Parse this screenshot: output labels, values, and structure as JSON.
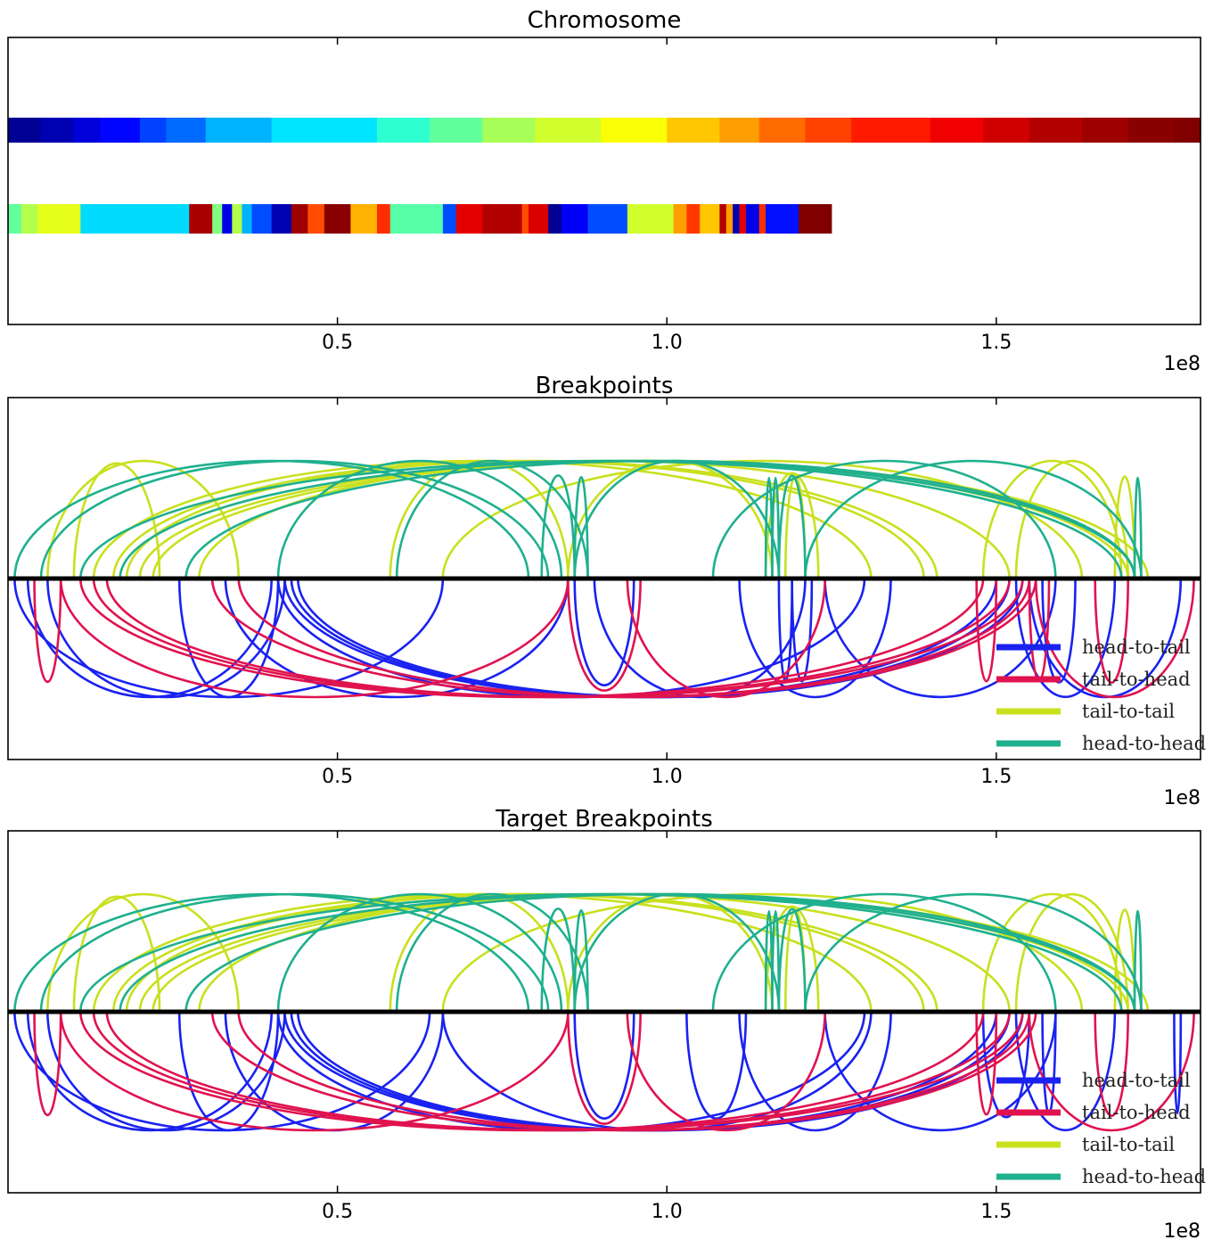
{
  "colors": {
    "head_to_tail": "#1a22f0",
    "tail_to_head": "#e0134f",
    "tail_to_tail": "#c8e01e",
    "head_to_head": "#1fb08e",
    "axis": "#000000"
  },
  "chart_data": [
    {
      "type": "heatmap",
      "title": "Chromosome",
      "xlim": [
        0,
        181000000
      ],
      "xticks": [
        50000000,
        100000000,
        150000000
      ],
      "xtick_labels": [
        "0.5",
        "1.0",
        "1.5"
      ],
      "offset_label": "1e8",
      "colormap": "jet",
      "tracks": [
        {
          "name": "reference",
          "segments": [
            {
              "start": 0,
              "end": 5000000,
              "v": 0.02
            },
            {
              "start": 5000000,
              "end": 10000000,
              "v": 0.05
            },
            {
              "start": 10000000,
              "end": 14000000,
              "v": 0.09
            },
            {
              "start": 14000000,
              "end": 20000000,
              "v": 0.13
            },
            {
              "start": 20000000,
              "end": 24000000,
              "v": 0.19
            },
            {
              "start": 24000000,
              "end": 30000000,
              "v": 0.23
            },
            {
              "start": 30000000,
              "end": 40000000,
              "v": 0.3
            },
            {
              "start": 40000000,
              "end": 56000000,
              "v": 0.35
            },
            {
              "start": 56000000,
              "end": 64000000,
              "v": 0.42
            },
            {
              "start": 64000000,
              "end": 72000000,
              "v": 0.47
            },
            {
              "start": 72000000,
              "end": 80000000,
              "v": 0.54
            },
            {
              "start": 80000000,
              "end": 90000000,
              "v": 0.58
            },
            {
              "start": 90000000,
              "end": 100000000,
              "v": 0.62
            },
            {
              "start": 100000000,
              "end": 108000000,
              "v": 0.68
            },
            {
              "start": 108000000,
              "end": 114000000,
              "v": 0.72
            },
            {
              "start": 114000000,
              "end": 121000000,
              "v": 0.77
            },
            {
              "start": 121000000,
              "end": 128000000,
              "v": 0.81
            },
            {
              "start": 128000000,
              "end": 140000000,
              "v": 0.85
            },
            {
              "start": 140000000,
              "end": 148000000,
              "v": 0.89
            },
            {
              "start": 148000000,
              "end": 155000000,
              "v": 0.92
            },
            {
              "start": 155000000,
              "end": 163000000,
              "v": 0.95
            },
            {
              "start": 163000000,
              "end": 170000000,
              "v": 0.97
            },
            {
              "start": 170000000,
              "end": 177000000,
              "v": 0.99
            },
            {
              "start": 177000000,
              "end": 181000000,
              "v": 1.0
            }
          ]
        },
        {
          "name": "target",
          "segments": [
            {
              "start": 0,
              "end": 2000000,
              "v": 0.47
            },
            {
              "start": 2000000,
              "end": 4500000,
              "v": 0.55
            },
            {
              "start": 4500000,
              "end": 11000000,
              "v": 0.6
            },
            {
              "start": 11000000,
              "end": 27500000,
              "v": 0.34
            },
            {
              "start": 27500000,
              "end": 31000000,
              "v": 0.96
            },
            {
              "start": 31000000,
              "end": 32500000,
              "v": 0.5
            },
            {
              "start": 32500000,
              "end": 34000000,
              "v": 0.1
            },
            {
              "start": 34000000,
              "end": 35500000,
              "v": 0.55
            },
            {
              "start": 35500000,
              "end": 37000000,
              "v": 0.3
            },
            {
              "start": 37000000,
              "end": 40000000,
              "v": 0.2
            },
            {
              "start": 40000000,
              "end": 43000000,
              "v": 0.05
            },
            {
              "start": 43000000,
              "end": 45500000,
              "v": 0.97
            },
            {
              "start": 45500000,
              "end": 48000000,
              "v": 0.8
            },
            {
              "start": 48000000,
              "end": 52000000,
              "v": 0.99
            },
            {
              "start": 52000000,
              "end": 56000000,
              "v": 0.7
            },
            {
              "start": 56000000,
              "end": 58000000,
              "v": 0.83
            },
            {
              "start": 58000000,
              "end": 66000000,
              "v": 0.46
            },
            {
              "start": 66000000,
              "end": 68000000,
              "v": 0.2
            },
            {
              "start": 68000000,
              "end": 72000000,
              "v": 0.9
            },
            {
              "start": 72000000,
              "end": 78000000,
              "v": 0.95
            },
            {
              "start": 78000000,
              "end": 79000000,
              "v": 0.8
            },
            {
              "start": 79000000,
              "end": 82000000,
              "v": 0.91
            },
            {
              "start": 82000000,
              "end": 84000000,
              "v": 0.02
            },
            {
              "start": 84000000,
              "end": 88000000,
              "v": 0.12
            },
            {
              "start": 88000000,
              "end": 94000000,
              "v": 0.2
            },
            {
              "start": 94000000,
              "end": 101000000,
              "v": 0.58
            },
            {
              "start": 101000000,
              "end": 103000000,
              "v": 0.72
            },
            {
              "start": 103000000,
              "end": 105000000,
              "v": 0.82
            },
            {
              "start": 105000000,
              "end": 108000000,
              "v": 0.68
            },
            {
              "start": 108000000,
              "end": 109000000,
              "v": 0.95
            },
            {
              "start": 109000000,
              "end": 110000000,
              "v": 0.72
            },
            {
              "start": 110000000,
              "end": 111000000,
              "v": 0.05
            },
            {
              "start": 111000000,
              "end": 112000000,
              "v": 0.9
            },
            {
              "start": 112000000,
              "end": 114000000,
              "v": 0.1
            },
            {
              "start": 114000000,
              "end": 115000000,
              "v": 0.83
            },
            {
              "start": 115000000,
              "end": 120000000,
              "v": 0.14
            },
            {
              "start": 120000000,
              "end": 125000000,
              "v": 1.0
            }
          ]
        }
      ]
    },
    {
      "type": "arc",
      "title": "Breakpoints",
      "xlim": [
        0,
        181000000
      ],
      "xticks": [
        50000000,
        100000000,
        150000000
      ],
      "xtick_labels": [
        "0.5",
        "1.0",
        "1.5"
      ],
      "offset_label": "1e8",
      "legend": [
        "head-to-tail",
        "tail-to-head",
        "tail-to-tail",
        "head-to-head"
      ],
      "legend_position": "bottom-right",
      "series": [
        {
          "name": "head-to-tail",
          "arcs": [
            [
              1000000,
              66000000
            ],
            [
              3000000,
              40000000
            ],
            [
              6000000,
              42000000
            ],
            [
              26000000,
              41000000
            ],
            [
              33000000,
              85000000
            ],
            [
              41000000,
              130000000
            ],
            [
              42000000,
              150000000
            ],
            [
              43000000,
              152000000
            ],
            [
              44000000,
              154000000
            ],
            [
              86000000,
              95000000
            ],
            [
              89000000,
              121000000
            ],
            [
              111000000,
              134000000
            ],
            [
              117000000,
              119000000
            ],
            [
              119000000,
              122000000
            ],
            [
              124000000,
              159000000
            ],
            [
              153000000,
              168000000
            ],
            [
              155000000,
              178000000
            ],
            [
              157000000,
              162000000
            ]
          ]
        },
        {
          "name": "tail-to-head",
          "arcs": [
            [
              4000000,
              8000000
            ],
            [
              8000000,
              85000000
            ],
            [
              11000000,
              148000000
            ],
            [
              13000000,
              152000000
            ],
            [
              15000000,
              154000000
            ],
            [
              31000000,
              155000000
            ],
            [
              35000000,
              156000000
            ],
            [
              85000000,
              96000000
            ],
            [
              94000000,
              124000000
            ],
            [
              147000000,
              150000000
            ],
            [
              155000000,
              158000000
            ],
            [
              156000000,
              180000000
            ],
            [
              165000000,
              170000000
            ]
          ]
        },
        {
          "name": "tail-to-tail",
          "arcs": [
            [
              6000000,
              35000000
            ],
            [
              10000000,
              23000000
            ],
            [
              13000000,
              131000000
            ],
            [
              16000000,
              139000000
            ],
            [
              18000000,
              141000000
            ],
            [
              20000000,
              170000000
            ],
            [
              22000000,
              173000000
            ],
            [
              29000000,
              152000000
            ],
            [
              58000000,
              85000000
            ],
            [
              66000000,
              163000000
            ],
            [
              85000000,
              116000000
            ],
            [
              115000000,
              123000000
            ],
            [
              118000000,
              121000000
            ],
            [
              148000000,
              169000000
            ],
            [
              153000000,
              170000000
            ],
            [
              168000000,
              171000000
            ]
          ]
        },
        {
          "name": "head-to-head",
          "arcs": [
            [
              1000000,
              79000000
            ],
            [
              5000000,
              82000000
            ],
            [
              11000000,
              169000000
            ],
            [
              17000000,
              171000000
            ],
            [
              27000000,
              171000000
            ],
            [
              41000000,
              84000000
            ],
            [
              59000000,
              88000000
            ],
            [
              81000000,
              86000000
            ],
            [
              86000000,
              88000000
            ],
            [
              86000000,
              117000000
            ],
            [
              107000000,
              159000000
            ],
            [
              115000000,
              116000000
            ],
            [
              116000000,
              117000000
            ],
            [
              117000000,
              121000000
            ],
            [
              121000000,
              172000000
            ],
            [
              171000000,
              172000000
            ]
          ]
        }
      ]
    },
    {
      "type": "arc",
      "title": "Target Breakpoints",
      "xlim": [
        0,
        181000000
      ],
      "xticks": [
        50000000,
        100000000,
        150000000
      ],
      "xtick_labels": [
        "0.5",
        "1.0",
        "1.5"
      ],
      "offset_label": "1e8",
      "legend": [
        "head-to-tail",
        "tail-to-head",
        "tail-to-tail",
        "head-to-head"
      ],
      "legend_position": "bottom-right",
      "series": [
        {
          "name": "head-to-tail",
          "arcs": [
            [
              1000000,
              64000000
            ],
            [
              3000000,
              40000000
            ],
            [
              6000000,
              42000000
            ],
            [
              26000000,
              41000000
            ],
            [
              33000000,
              66000000
            ],
            [
              41000000,
              130000000
            ],
            [
              42000000,
              150000000
            ],
            [
              43000000,
              152000000
            ],
            [
              44000000,
              154000000
            ],
            [
              66000000,
              131000000
            ],
            [
              86000000,
              95000000
            ],
            [
              103000000,
              112000000
            ],
            [
              111000000,
              134000000
            ],
            [
              124000000,
              159000000
            ],
            [
              148000000,
              155000000
            ],
            [
              153000000,
              168000000
            ],
            [
              157000000,
              159000000
            ],
            [
              177000000,
              178000000
            ]
          ]
        },
        {
          "name": "tail-to-head",
          "arcs": [
            [
              4000000,
              8000000
            ],
            [
              8000000,
              85000000
            ],
            [
              11000000,
              148000000
            ],
            [
              13000000,
              152000000
            ],
            [
              15000000,
              154000000
            ],
            [
              31000000,
              155000000
            ],
            [
              35000000,
              156000000
            ],
            [
              85000000,
              96000000
            ],
            [
              94000000,
              124000000
            ],
            [
              147000000,
              150000000
            ],
            [
              155000000,
              180000000
            ],
            [
              165000000,
              170000000
            ]
          ]
        },
        {
          "name": "tail-to-tail",
          "arcs": [
            [
              6000000,
              35000000
            ],
            [
              10000000,
              23000000
            ],
            [
              13000000,
              131000000
            ],
            [
              16000000,
              139000000
            ],
            [
              18000000,
              141000000
            ],
            [
              20000000,
              170000000
            ],
            [
              22000000,
              173000000
            ],
            [
              29000000,
              152000000
            ],
            [
              58000000,
              85000000
            ],
            [
              66000000,
              163000000
            ],
            [
              85000000,
              116000000
            ],
            [
              115000000,
              123000000
            ],
            [
              118000000,
              121000000
            ],
            [
              148000000,
              169000000
            ],
            [
              153000000,
              170000000
            ],
            [
              168000000,
              171000000
            ]
          ]
        },
        {
          "name": "head-to-head",
          "arcs": [
            [
              1000000,
              79000000
            ],
            [
              5000000,
              82000000
            ],
            [
              11000000,
              169000000
            ],
            [
              17000000,
              171000000
            ],
            [
              27000000,
              171000000
            ],
            [
              41000000,
              84000000
            ],
            [
              59000000,
              88000000
            ],
            [
              81000000,
              86000000
            ],
            [
              86000000,
              88000000
            ],
            [
              86000000,
              117000000
            ],
            [
              107000000,
              159000000
            ],
            [
              115000000,
              116000000
            ],
            [
              116000000,
              117000000
            ],
            [
              117000000,
              121000000
            ],
            [
              121000000,
              172000000
            ],
            [
              171000000,
              172000000
            ]
          ]
        }
      ]
    }
  ]
}
